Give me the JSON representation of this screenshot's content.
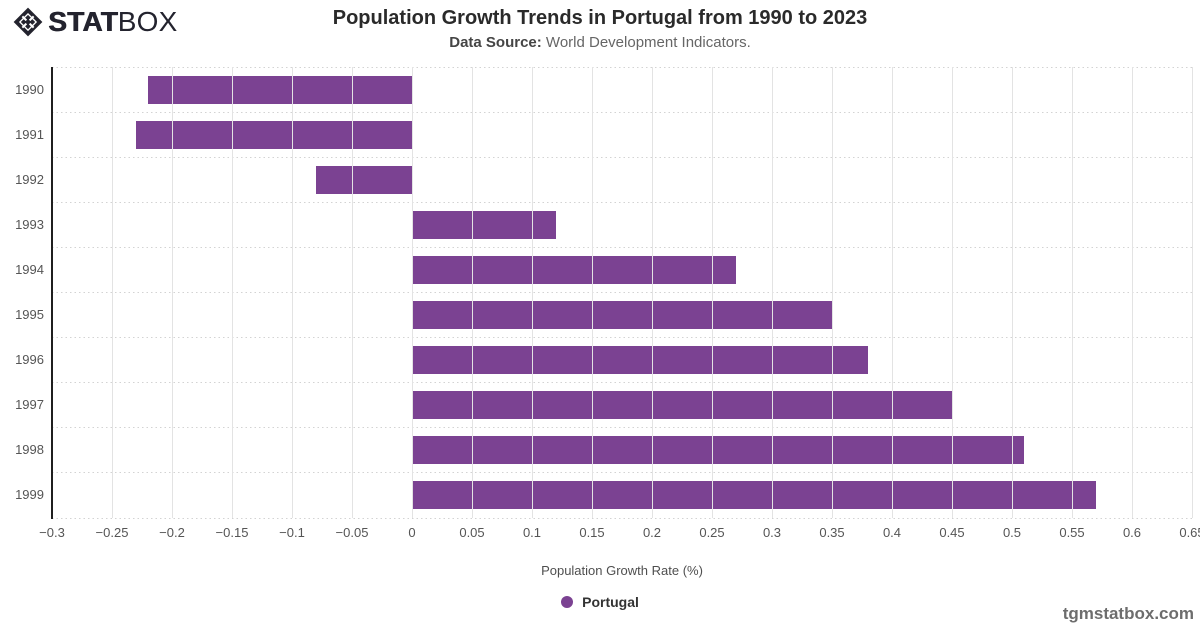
{
  "header": {
    "logo": {
      "text_bold": "STAT",
      "text_light": "BOX",
      "icon": "statbox-diamond-icon"
    },
    "title": "Population Growth Trends in Portugal from 1990 to 2023",
    "data_source_label": "Data Source:",
    "data_source_value": " World Development Indicators."
  },
  "chart_data": {
    "type": "bar",
    "orientation": "horizontal",
    "title": "Population Growth Trends in Portugal from 1990 to 2023",
    "categories": [
      "1990",
      "1991",
      "1992",
      "1993",
      "1994",
      "1995",
      "1996",
      "1997",
      "1998",
      "1999"
    ],
    "series": [
      {
        "name": "Portugal",
        "color": "#7b4292",
        "values": [
          -0.22,
          -0.23,
          -0.08,
          0.12,
          0.27,
          0.35,
          0.38,
          0.45,
          0.51,
          0.57
        ]
      }
    ],
    "xlabel": "Population Growth Rate (%)",
    "xlim": [
      -0.3,
      0.65
    ],
    "x_tick_values": [
      -0.3,
      -0.25,
      -0.2,
      -0.15,
      -0.1,
      -0.05,
      0,
      0.05,
      0.1,
      0.15,
      0.2,
      0.25,
      0.3,
      0.35,
      0.4,
      0.45,
      0.5,
      0.55,
      0.6,
      0.65
    ],
    "x_tick_labels": [
      "−0.3",
      "−0.25",
      "−0.2",
      "−0.15",
      "−0.1",
      "−0.05",
      "0",
      "0.05",
      "0.1",
      "0.15",
      "0.2",
      "0.25",
      "0.3",
      "0.35",
      "0.4",
      "0.45",
      "0.5",
      "0.55",
      "0.6",
      "0.65"
    ],
    "grid": true,
    "legend_position": "bottom"
  },
  "legend": {
    "marker_color": "#7b4292",
    "label": "Portugal"
  },
  "footer": {
    "watermark": "tgmstatbox.com"
  },
  "colors": {
    "bar": "#7b4292",
    "axis_line": "#1f1f1f",
    "gridline": "#e3e3e3",
    "row_separator": "#d3d3d3",
    "title_text": "#2a2a2a",
    "muted_text": "#555555",
    "watermark_text": "#6d6d6d"
  }
}
